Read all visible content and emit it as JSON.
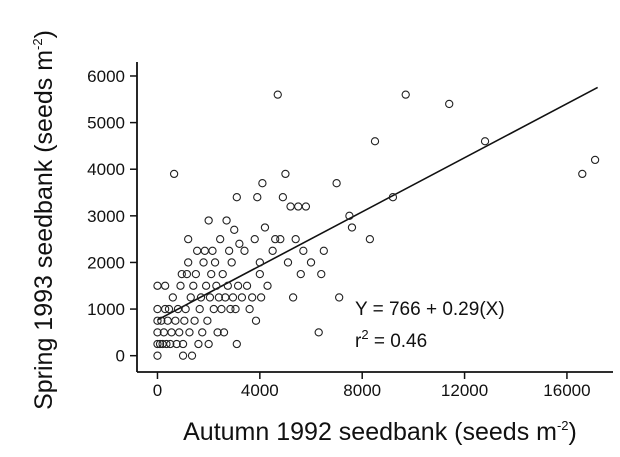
{
  "chart_data": {
    "type": "scatter",
    "xlabel": "Autumn 1992  seedbank (seeds m",
    "xlabel_sup": "-2",
    "xlabel_end": ")",
    "ylabel": "Spring 1993  seedbank (seeds m",
    "ylabel_sup": "-2",
    "ylabel_end": ")",
    "xlim": [
      -800,
      17800
    ],
    "ylim": [
      -350,
      6300
    ],
    "x_ticks": [
      0,
      4000,
      8000,
      12000,
      16000
    ],
    "x_tick_labels": [
      "0",
      "4000",
      "8000",
      "12000",
      "16000"
    ],
    "y_ticks": [
      0,
      1000,
      2000,
      3000,
      4000,
      5000,
      6000
    ],
    "y_tick_labels": [
      "0",
      "1000",
      "2000",
      "3000",
      "4000",
      "5000",
      "6000"
    ],
    "grid": false,
    "annotation_equation": "Y = 766 + 0.29(X)",
    "annotation_r2_prefix": "r",
    "annotation_r2_sup": "2",
    "annotation_r2_value": " = 0.46",
    "fit": {
      "intercept": 766,
      "slope": 0.29,
      "x_range": [
        0,
        17200
      ]
    },
    "points": [
      [
        0,
        0
      ],
      [
        0,
        250
      ],
      [
        0,
        500
      ],
      [
        0,
        750
      ],
      [
        0,
        1000
      ],
      [
        0,
        1500
      ],
      [
        100,
        250
      ],
      [
        150,
        750
      ],
      [
        200,
        250
      ],
      [
        250,
        500
      ],
      [
        300,
        1000
      ],
      [
        300,
        1500
      ],
      [
        350,
        250
      ],
      [
        400,
        750
      ],
      [
        450,
        1000
      ],
      [
        500,
        250
      ],
      [
        550,
        500
      ],
      [
        600,
        1250
      ],
      [
        650,
        3900
      ],
      [
        700,
        750
      ],
      [
        750,
        250
      ],
      [
        800,
        1000
      ],
      [
        850,
        500
      ],
      [
        900,
        1500
      ],
      [
        950,
        1750
      ],
      [
        1000,
        0
      ],
      [
        1000,
        250
      ],
      [
        1050,
        750
      ],
      [
        1100,
        1000
      ],
      [
        1150,
        1750
      ],
      [
        1200,
        2000
      ],
      [
        1200,
        2500
      ],
      [
        1250,
        500
      ],
      [
        1300,
        1250
      ],
      [
        1350,
        0
      ],
      [
        1400,
        1500
      ],
      [
        1450,
        750
      ],
      [
        1500,
        1750
      ],
      [
        1550,
        2250
      ],
      [
        1600,
        250
      ],
      [
        1650,
        1000
      ],
      [
        1700,
        1250
      ],
      [
        1750,
        500
      ],
      [
        1800,
        2000
      ],
      [
        1850,
        2250
      ],
      [
        1900,
        1500
      ],
      [
        1950,
        750
      ],
      [
        2000,
        2900
      ],
      [
        2000,
        250
      ],
      [
        2050,
        1250
      ],
      [
        2100,
        1750
      ],
      [
        2150,
        2250
      ],
      [
        2200,
        1000
      ],
      [
        2250,
        2000
      ],
      [
        2300,
        1500
      ],
      [
        2350,
        500
      ],
      [
        2400,
        1250
      ],
      [
        2450,
        2500
      ],
      [
        2500,
        1000
      ],
      [
        2550,
        1750
      ],
      [
        2600,
        500
      ],
      [
        2650,
        1250
      ],
      [
        2700,
        2900
      ],
      [
        2750,
        1500
      ],
      [
        2800,
        2250
      ],
      [
        2850,
        1000
      ],
      [
        2900,
        2000
      ],
      [
        2950,
        1250
      ],
      [
        3000,
        2700
      ],
      [
        3050,
        1000
      ],
      [
        3100,
        3400
      ],
      [
        3100,
        250
      ],
      [
        3150,
        1500
      ],
      [
        3200,
        2400
      ],
      [
        3300,
        1250
      ],
      [
        3400,
        2250
      ],
      [
        3500,
        1500
      ],
      [
        3600,
        1000
      ],
      [
        3700,
        1250
      ],
      [
        3800,
        2500
      ],
      [
        3850,
        750
      ],
      [
        3900,
        3400
      ],
      [
        4000,
        1750
      ],
      [
        4000,
        2000
      ],
      [
        4050,
        1250
      ],
      [
        4100,
        3700
      ],
      [
        4200,
        2750
      ],
      [
        4300,
        1500
      ],
      [
        4500,
        2250
      ],
      [
        4600,
        2500
      ],
      [
        4700,
        5600
      ],
      [
        4800,
        2500
      ],
      [
        4900,
        3400
      ],
      [
        5000,
        3900
      ],
      [
        5100,
        2000
      ],
      [
        5200,
        3200
      ],
      [
        5300,
        1250
      ],
      [
        5400,
        2500
      ],
      [
        5500,
        3200
      ],
      [
        5600,
        1750
      ],
      [
        5700,
        2250
      ],
      [
        5800,
        3200
      ],
      [
        6000,
        2000
      ],
      [
        6300,
        500
      ],
      [
        6400,
        1750
      ],
      [
        6500,
        2250
      ],
      [
        7000,
        3700
      ],
      [
        7100,
        1250
      ],
      [
        7500,
        3000
      ],
      [
        7600,
        2750
      ],
      [
        8300,
        2500
      ],
      [
        8500,
        4600
      ],
      [
        9200,
        3400
      ],
      [
        9700,
        5600
      ],
      [
        11400,
        5400
      ],
      [
        12800,
        4600
      ],
      [
        16600,
        3900
      ],
      [
        17100,
        4200
      ]
    ]
  }
}
